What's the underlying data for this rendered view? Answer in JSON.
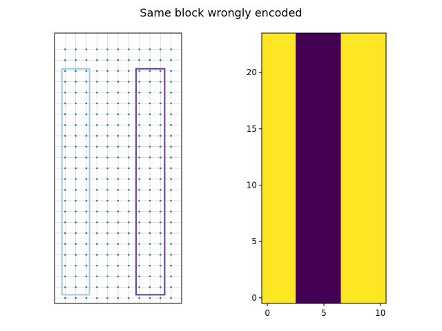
{
  "title": "Same block wrongly encoded",
  "chart_data": [
    {
      "type": "scatter",
      "description_role": "left panel: point grid with two outlined blocks",
      "grid": {
        "nx": 11,
        "ny": 24,
        "x_start": 0,
        "y_start": 0,
        "step": 1
      },
      "xlim": [
        -1,
        11
      ],
      "ylim": [
        -0.5,
        24.5
      ],
      "axes_ticks": false,
      "grid_lines": true,
      "point_color": "#1f77b4",
      "gridline_color": "#d9d9d9",
      "blocks": [
        {
          "x_range": [
            -0.3,
            2.3
          ],
          "y_range": [
            0.3,
            21.2
          ],
          "color": "#9ecae1"
        },
        {
          "x_range": [
            6.7,
            9.4
          ],
          "y_range": [
            0.3,
            21.2
          ],
          "color": "#6a3d9a"
        }
      ]
    },
    {
      "type": "heatmap",
      "description_role": "right panel: column band image",
      "x_columns": [
        0,
        1,
        2,
        3,
        4,
        5,
        6,
        7,
        8,
        9,
        10
      ],
      "column_values": [
        1,
        1,
        1,
        0,
        0,
        0,
        0,
        1,
        1,
        1,
        1
      ],
      "rows": 24,
      "xlim": [
        -0.5,
        10.5
      ],
      "ylim": [
        -0.5,
        23.5
      ],
      "xticks": [
        0,
        5,
        10
      ],
      "yticks": [
        0,
        5,
        10,
        15,
        20
      ],
      "colors": {
        "high": "#fde725",
        "low": "#440154"
      }
    }
  ]
}
